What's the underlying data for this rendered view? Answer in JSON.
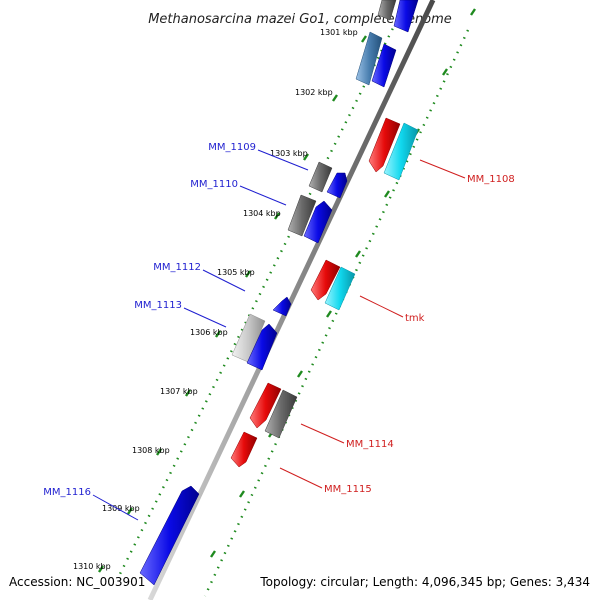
{
  "title": "Methanosarcina mazei Go1, complete genome",
  "footer": {
    "accession": "Accession: NC_003901",
    "topology": "Topology: circular; Length: 4,096,345 bp; Genes: 3,434"
  },
  "colors": {
    "backbone": "#8c8c8c",
    "ruler": "#1f8a1f",
    "forward_label": "#1f1fd0",
    "reverse_label": "#d01f1f",
    "gene_blue": "#0a0ae6",
    "gene_red": "#e60a0a",
    "gene_cyan": "#10d8ee",
    "gene_gray": "#6a6a6a",
    "gene_lightgray": "#c8c8c8",
    "gene_steel": "#4a7fb0"
  },
  "kbp_labels": [
    "1301 kbp",
    "1302 kbp",
    "1303 kbp",
    "1304 kbp",
    "1305 kbp",
    "1306 kbp",
    "1307 kbp",
    "1308 kbp",
    "1309 kbp",
    "1310 kbp"
  ],
  "gene_labels": {
    "mm1109": "MM_1109",
    "mm1110": "MM_1110",
    "mm1112": "MM_1112",
    "mm1113": "MM_1113",
    "mm1116": "MM_1116",
    "mm1108": "MM_1108",
    "tmk": "tmk",
    "mm1114": "MM_1114",
    "mm1115": "MM_1115"
  }
}
